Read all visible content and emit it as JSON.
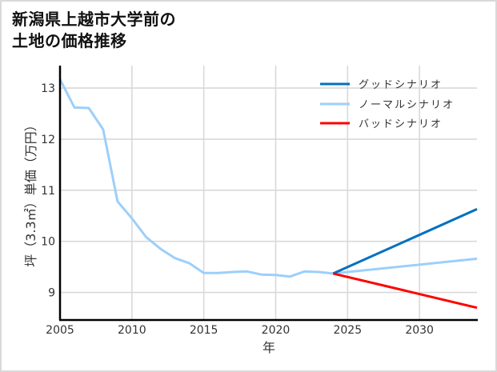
{
  "chart_data": {
    "type": "line",
    "title": "新潟県上越市大学前の土地の価格推移",
    "title_lines": [
      "新潟県上越市大学前の",
      "土地の価格推移"
    ],
    "xlabel": "年",
    "ylabel": "坪（3.3㎡）単価（万円）",
    "xlim": [
      2005,
      2034
    ],
    "ylim": [
      8.46,
      13.44
    ],
    "xticks": [
      2005,
      2010,
      2015,
      2020,
      2025,
      2030
    ],
    "yticks": [
      9,
      10,
      11,
      12,
      13
    ],
    "grid": true,
    "legend_position": "upper right",
    "series": [
      {
        "name": "グッドシナリオ",
        "color": "#0070C0",
        "x": [
          2024,
          2034
        ],
        "values": [
          9.37,
          10.63
        ]
      },
      {
        "name": "ノーマルシナリオ",
        "color": "#9DCFFA",
        "x": [
          2005,
          2006,
          2007,
          2008,
          2009,
          2010,
          2011,
          2012,
          2013,
          2014,
          2015,
          2016,
          2017,
          2018,
          2019,
          2020,
          2021,
          2022,
          2023,
          2024,
          2034
        ],
        "values": [
          13.17,
          12.62,
          12.61,
          12.19,
          10.78,
          10.45,
          10.08,
          9.85,
          9.67,
          9.57,
          9.38,
          9.38,
          9.4,
          9.41,
          9.35,
          9.34,
          9.31,
          9.41,
          9.4,
          9.37,
          9.66
        ]
      },
      {
        "name": "バッドシナリオ",
        "color": "#FF0000",
        "x": [
          2024,
          2034
        ],
        "values": [
          9.37,
          8.7
        ]
      }
    ]
  },
  "colors": {
    "grid": "#d9d9d9",
    "axis": "#000000",
    "frame": "#d9d9d9"
  }
}
